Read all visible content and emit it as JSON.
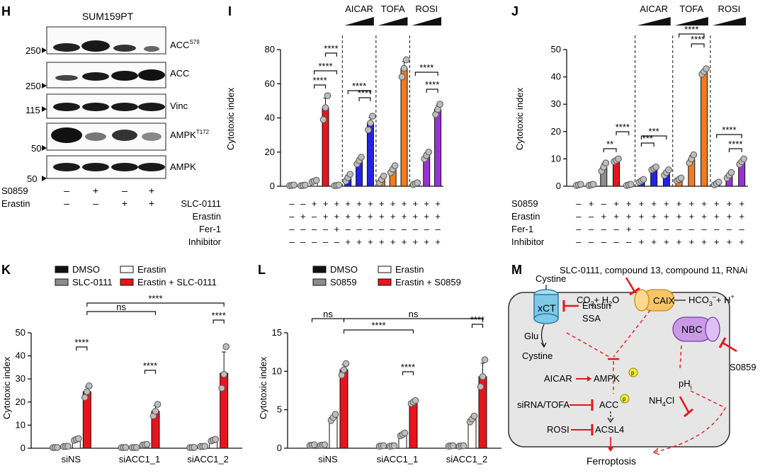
{
  "colors": {
    "red": "#e8141b",
    "orange": "#f47a20",
    "blue": "#2323e0",
    "purple": "#9b30d6",
    "grey": "#8c8c8c",
    "black": "#111111",
    "white": "#ffffff",
    "inhibitor_dash": "#e8141b",
    "cell_fill": "#e6e6e6",
    "xct": "#7ec8e8",
    "caix": "#f7c46a",
    "nbc": "#c99be6",
    "p_badge": "#f2ee2e"
  },
  "panel_letters": {
    "H": "H",
    "I": "I",
    "J": "J",
    "K": "K",
    "L": "L",
    "M": "M"
  },
  "western": {
    "title": "SUM159PT",
    "bands": [
      {
        "label": "ACC",
        "sup": "S79",
        "marker": "250"
      },
      {
        "label": "ACC",
        "sup": "",
        "marker": "250"
      },
      {
        "label": "Vinc",
        "sup": "",
        "marker": "115"
      },
      {
        "label": "AMPK",
        "sup": "T172",
        "marker": "50"
      },
      {
        "label": "AMPK",
        "sup": "",
        "marker": "50"
      }
    ],
    "rows": [
      {
        "label": "S0859",
        "signs": [
          "–",
          "+",
          "–",
          "+"
        ]
      },
      {
        "label": "Erastin",
        "signs": [
          "–",
          "–",
          "+",
          "+"
        ]
      }
    ]
  },
  "treatment_headers": [
    "AICAR",
    "TOFA",
    "ROSI"
  ],
  "chart_data": [
    {
      "panel": "I",
      "type": "bar",
      "ylabel": "Cytotoxic index",
      "ylim": [
        0,
        80
      ],
      "yticks": [
        0,
        20,
        40,
        60,
        80
      ],
      "values": [
        0.5,
        0.5,
        3,
        46,
        0.5,
        5,
        15,
        37,
        4,
        10,
        69,
        1.5,
        18,
        45
      ],
      "colors": [
        "black",
        "grey",
        "white",
        "red",
        "red",
        "blue",
        "blue",
        "blue",
        "orange",
        "orange",
        "orange",
        "purple",
        "purple",
        "purple"
      ],
      "points": [
        [
          0.3,
          0.5,
          0.7
        ],
        [
          0.3,
          0.5,
          0.7
        ],
        [
          2.5,
          3,
          3.5
        ],
        [
          39,
          46,
          53
        ],
        [
          0.3,
          0.5,
          0.7
        ],
        [
          3,
          5,
          7
        ],
        [
          13,
          15,
          17
        ],
        [
          33,
          37,
          41
        ],
        [
          2,
          4,
          6
        ],
        [
          8,
          10,
          12
        ],
        [
          64,
          69,
          74
        ],
        [
          1,
          1.5,
          2
        ],
        [
          16,
          18,
          20
        ],
        [
          42,
          45,
          48
        ]
      ],
      "row_labels": [
        "SLC-0111",
        "Erastin",
        "Fer-1",
        "Inhibitor"
      ],
      "rows": [
        [
          "–",
          "–",
          "+",
          "+",
          "+",
          "+",
          "+",
          "+",
          "+",
          "+",
          "+",
          "+",
          "+",
          "+"
        ],
        [
          "–",
          "+",
          "–",
          "+",
          "+",
          "+",
          "+",
          "+",
          "+",
          "+",
          "+",
          "+",
          "+",
          "+"
        ],
        [
          "–",
          "–",
          "–",
          "–",
          "+",
          "–",
          "–",
          "–",
          "–",
          "–",
          "–",
          "–",
          "–",
          "–"
        ],
        [
          "–",
          "–",
          "–",
          "–",
          "–",
          "+",
          "+",
          "+",
          "+",
          "+",
          "+",
          "+",
          "+",
          "+"
        ]
      ],
      "sig": [
        "****",
        "****",
        "****",
        "****",
        "****",
        "****",
        "****"
      ]
    },
    {
      "panel": "J",
      "type": "bar",
      "ylabel": "Cytotoxic index",
      "ylim": [
        0,
        50
      ],
      "yticks": [
        0,
        10,
        20,
        30,
        40,
        50
      ],
      "values": [
        0.5,
        0.5,
        7,
        9.5,
        0.5,
        2,
        6.5,
        5,
        2.5,
        10,
        42,
        1,
        4,
        9
      ],
      "colors": [
        "black",
        "grey",
        "grey",
        "red",
        "red",
        "blue",
        "blue",
        "blue",
        "orange",
        "orange",
        "orange",
        "purple",
        "purple",
        "purple"
      ],
      "points": [
        [
          0.3,
          0.5,
          0.7
        ],
        [
          0.3,
          0.5,
          0.7
        ],
        [
          5.5,
          7,
          8.5
        ],
        [
          9,
          9.5,
          10
        ],
        [
          0.3,
          0.5,
          0.7
        ],
        [
          1.5,
          2,
          2.5
        ],
        [
          6,
          6.5,
          7
        ],
        [
          4,
          5,
          6
        ],
        [
          2,
          2.5,
          3
        ],
        [
          8.5,
          10,
          11.5
        ],
        [
          41,
          42,
          43
        ],
        [
          0.5,
          1,
          1.5
        ],
        [
          3,
          4,
          5
        ],
        [
          8,
          9,
          10
        ]
      ],
      "row_labels": [
        "S0859",
        "Erastin",
        "Fer-1",
        "Inhibitor"
      ],
      "rows": [
        [
          "–",
          "+",
          "–",
          "+",
          "+",
          "+",
          "+",
          "+",
          "+",
          "+",
          "+",
          "+",
          "+",
          "+"
        ],
        [
          "–",
          "–",
          "+",
          "+",
          "+",
          "+",
          "+",
          "+",
          "+",
          "+",
          "+",
          "+",
          "+",
          "+"
        ],
        [
          "–",
          "–",
          "–",
          "–",
          "+",
          "–",
          "–",
          "–",
          "–",
          "–",
          "–",
          "–",
          "–",
          "–"
        ],
        [
          "–",
          "–",
          "–",
          "–",
          "–",
          "+",
          "+",
          "+",
          "+",
          "+",
          "+",
          "+",
          "+",
          "+"
        ]
      ],
      "sig": [
        "**",
        "****",
        "***",
        "***",
        "****",
        "****",
        "****",
        "****"
      ]
    },
    {
      "panel": "K",
      "type": "bar",
      "ylabel": "Cytotoxic index",
      "ylim": [
        0,
        50
      ],
      "yticks": [
        0,
        10,
        20,
        30,
        40,
        50
      ],
      "categories": [
        "siNS",
        "siACC1_1",
        "siACC1_2"
      ],
      "series": [
        {
          "name": "DMSO",
          "values": [
            0.3,
            0.3,
            0.3
          ]
        },
        {
          "name": "SLC-0111",
          "values": [
            0.8,
            0.3,
            0.8
          ]
        },
        {
          "name": "Erastin",
          "values": [
            3.8,
            1.5,
            3.5
          ]
        },
        {
          "name": "Erastin + SLC-0111",
          "values": [
            24.5,
            16,
            32.5
          ]
        }
      ],
      "points": [
        [
          22,
          24.5,
          27
        ],
        [
          14,
          16,
          19
        ],
        [
          26,
          32,
          44
        ]
      ],
      "sig": [
        "****",
        "ns",
        "****",
        "****",
        "****"
      ]
    },
    {
      "panel": "L",
      "type": "bar",
      "ylabel": "Cytotoxic index",
      "ylim": [
        0,
        15
      ],
      "yticks": [
        0,
        5,
        10,
        15
      ],
      "categories": [
        "siNS",
        "siACC1_1",
        "siACC1_2"
      ],
      "series": [
        {
          "name": "DMSO",
          "values": [
            0.4,
            0.3,
            0.3
          ]
        },
        {
          "name": "S0859",
          "values": [
            0.4,
            0.3,
            0.3
          ]
        },
        {
          "name": "Erastin",
          "values": [
            4,
            1.8,
            3.8
          ]
        },
        {
          "name": "Erastin + S0859",
          "values": [
            10.2,
            6,
            9.3
          ]
        }
      ],
      "points": [
        [
          9.5,
          10.2,
          11
        ],
        [
          5.8,
          6,
          6.2
        ],
        [
          8,
          9.3,
          11.5
        ]
      ],
      "sig": [
        "ns",
        "ns",
        "****",
        "****",
        "****"
      ]
    }
  ],
  "diagram": {
    "top_label": "SLC-0111, compound 13, compound 11, RNAi",
    "cystine_top": "Cystine",
    "xct": "xCT",
    "glu": "Glu",
    "cystine_bottom": "Cystine",
    "co2": "CO",
    "co2_sub": "2",
    "plus": "+ H",
    "h2o_sub": "2",
    "h2o_tail": "O",
    "caix": "CAIX",
    "hco3": "HCO",
    "hco3_sub": "3",
    "hco3_sup": "–",
    "hplus": "+ H",
    "hplus_sup": "+",
    "erastin": "Erastin",
    "ssa": "SSA",
    "nbc": "NBC",
    "s0859": "S0859",
    "ph": "pH",
    "ph_sub": "i",
    "nh4cl": "NH",
    "nh4_sub": "4",
    "nh4_tail": "Cl",
    "aicar": "AICAR",
    "ampk": "AMPK",
    "sirna": "siRNA/TOFA",
    "acc": "ACC",
    "rosi": "ROSI",
    "acsl4": "ACSL4",
    "ferroptosis": "Ferroptosis",
    "p": "p"
  }
}
